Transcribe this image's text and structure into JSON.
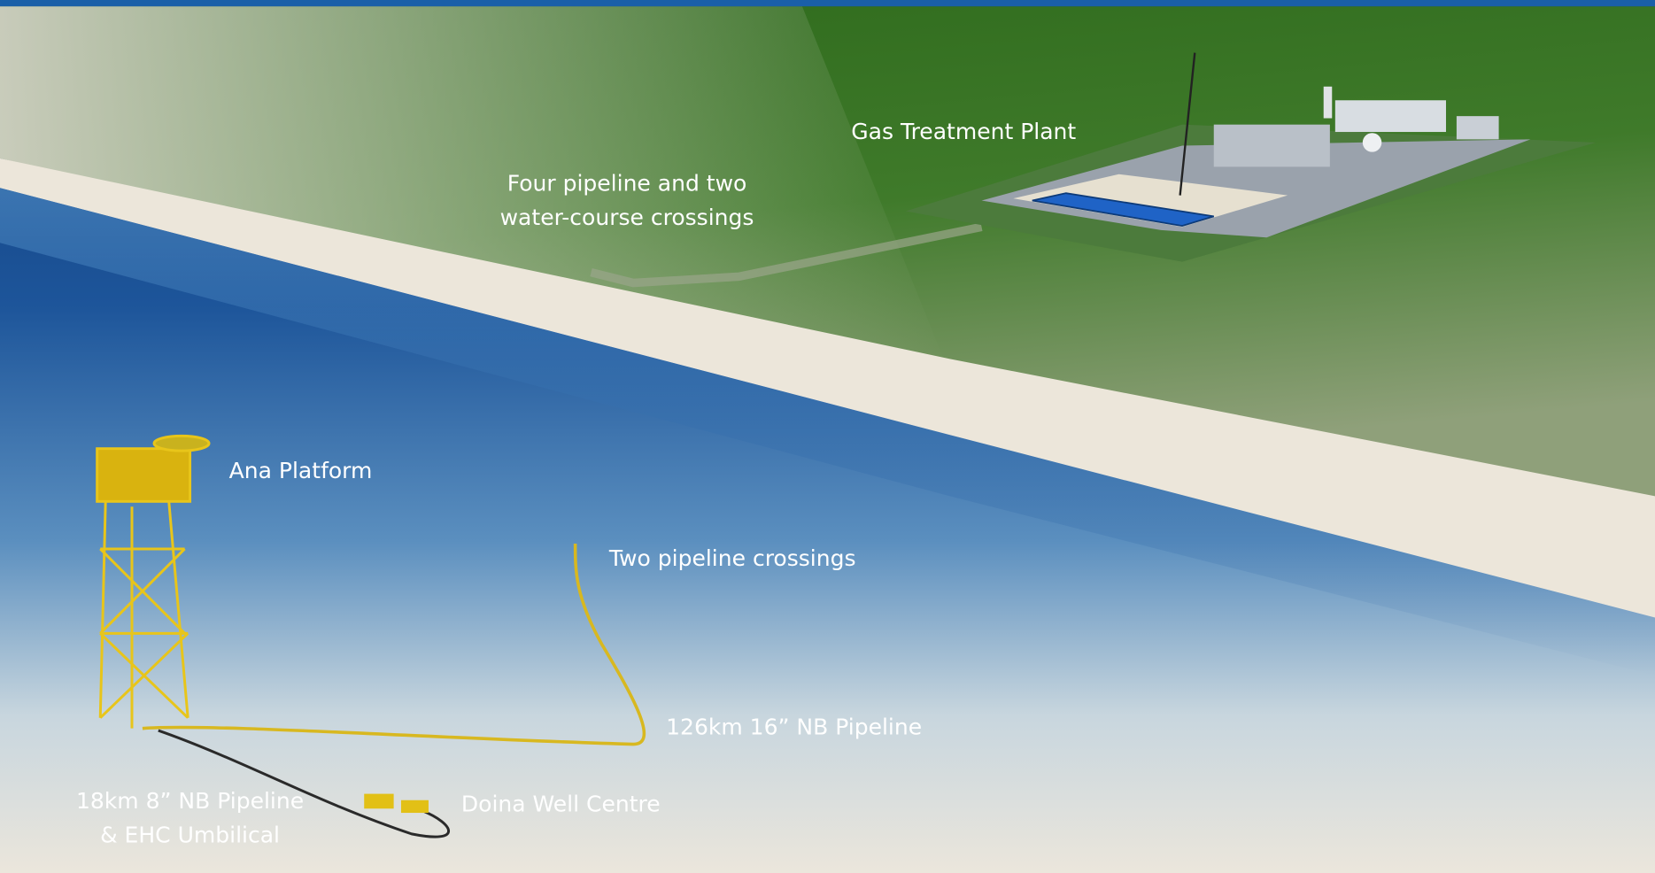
{
  "labels": {
    "gas_treatment_plant": "Gas Treatment Plant",
    "crossings_onshore": [
      "Four pipeline and two",
      "water-course crossings"
    ],
    "ana_platform": "Ana Platform",
    "crossings_offshore": "Two pipeline crossings",
    "main_pipeline": "126km 16” NB Pipeline",
    "infield_pipeline": [
      "18km 8” NB Pipeline",
      "& EHC Umbilical"
    ],
    "doina_well_centre": "Doina Well Centre"
  }
}
